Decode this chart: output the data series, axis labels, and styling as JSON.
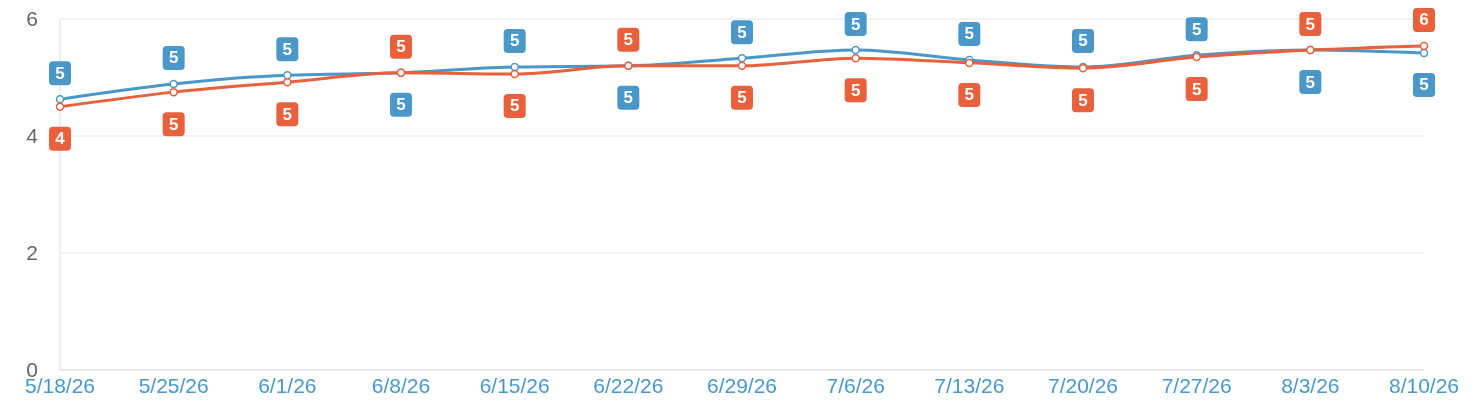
{
  "chart_data": {
    "type": "line",
    "categories": [
      "5/18/26",
      "5/25/26",
      "6/1/26",
      "6/8/26",
      "6/15/26",
      "6/22/26",
      "6/29/26",
      "7/6/26",
      "7/13/26",
      "7/20/26",
      "7/27/26",
      "8/3/26",
      "8/10/26"
    ],
    "series": [
      {
        "color": "#4a98c9",
        "values": [
          4.63,
          4.89,
          5.04,
          5.08,
          5.18,
          5.2,
          5.33,
          5.47,
          5.3,
          5.18,
          5.38,
          5.47,
          5.42
        ],
        "value_labels": [
          "5",
          "5",
          "5",
          "5",
          "5",
          "5",
          "5",
          "5",
          "5",
          "5",
          "5",
          "5",
          "5"
        ]
      },
      {
        "color": "#e8603c",
        "values": [
          4.5,
          4.75,
          4.92,
          5.08,
          5.06,
          5.2,
          5.2,
          5.33,
          5.25,
          5.16,
          5.35,
          5.47,
          5.54
        ],
        "value_labels": [
          "4",
          "5",
          "5",
          "5",
          "5",
          "5",
          "5",
          "5",
          "5",
          "5",
          "5",
          "5",
          "6"
        ]
      }
    ],
    "ylim": [
      0,
      6
    ],
    "yticks": [
      0,
      2,
      4,
      6
    ],
    "grid": "y",
    "marker": "circle",
    "line_style": "solid"
  }
}
